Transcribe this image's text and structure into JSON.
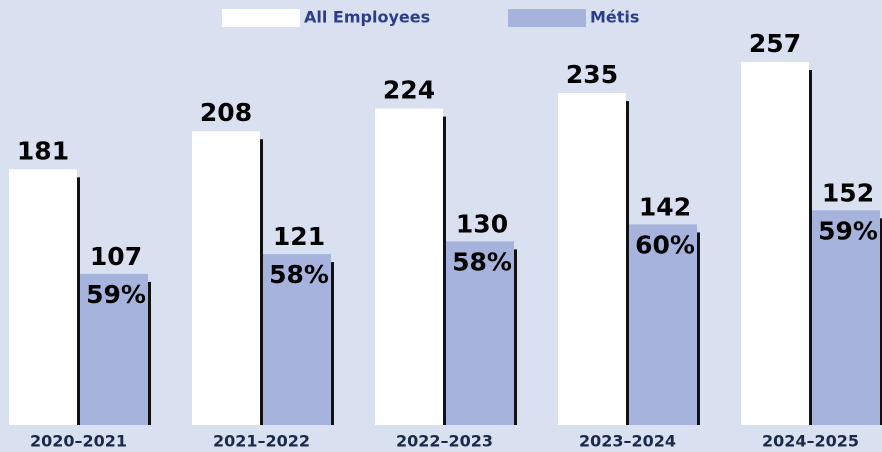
{
  "chart_data": {
    "type": "bar",
    "categories": [
      "2020–2021",
      "2021–2022",
      "2022–2023",
      "2023–2024",
      "2024–2025"
    ],
    "series": [
      {
        "name": "All Employees",
        "color": "#ffffff",
        "values": [
          181,
          208,
          224,
          235,
          257
        ]
      },
      {
        "name": "Métis",
        "color": "#a6b3dc",
        "values": [
          107,
          121,
          130,
          142,
          152
        ],
        "share_labels": [
          "59%",
          "58%",
          "58%",
          "60%",
          "59%"
        ]
      }
    ],
    "legend": "top"
  }
}
